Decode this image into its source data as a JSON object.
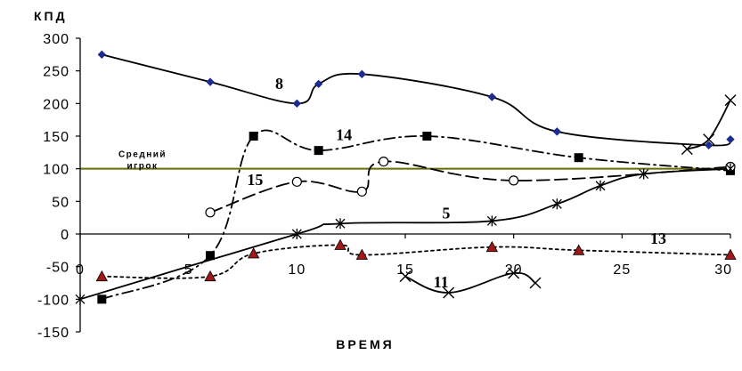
{
  "chart_data": {
    "type": "line",
    "ylabel": "КПД",
    "xlabel": "ВРЕМЯ",
    "xlim": [
      0,
      30
    ],
    "ylim": [
      -150,
      300
    ],
    "xticks": [
      0,
      5,
      10,
      15,
      20,
      25,
      30
    ],
    "yticks": [
      300,
      250,
      200,
      150,
      100,
      50,
      0,
      -50,
      -100,
      -150
    ],
    "xtick_labels": [
      "0",
      "5",
      "10",
      "15",
      "20",
      "25",
      "30"
    ],
    "ytick_labels": [
      "300",
      "250",
      "200",
      "150",
      "100",
      "50",
      "0",
      "-50",
      "-100",
      "-150"
    ],
    "grid": false,
    "legend": "none",
    "reference_line": {
      "y": 100,
      "label_lines": [
        "Средний",
        "игрок"
      ],
      "color": "#6b6b00"
    },
    "series": [
      {
        "name": "8",
        "color": "#000000",
        "dash": "solid",
        "marker": "diamond",
        "marker_color": "#1f2c8f",
        "x": [
          1,
          6,
          10,
          11,
          13,
          19,
          22,
          29,
          30
        ],
        "y": [
          275,
          233,
          200,
          230,
          245,
          210,
          157,
          136,
          145
        ],
        "label_at": [
          9,
          222
        ]
      },
      {
        "name": "14",
        "color": "#000000",
        "dash": "dashdot",
        "marker": "square",
        "marker_color": "#000000",
        "x": [
          1,
          6,
          8,
          11,
          16,
          23,
          30
        ],
        "y": [
          -100,
          -33,
          150,
          128,
          150,
          117,
          97
        ],
        "label_at": [
          11.8,
          144
        ]
      },
      {
        "name": "15",
        "color": "#000000",
        "dash": "longdash",
        "marker": "circle",
        "marker_color": "#ffffff",
        "x": [
          6,
          10,
          13,
          14,
          20,
          30
        ],
        "y": [
          33,
          80,
          65,
          111,
          82,
          103
        ],
        "label_at": [
          7.7,
          75
        ]
      },
      {
        "name": "5",
        "color": "#000000",
        "dash": "solid",
        "marker": "star",
        "marker_color": "#000000",
        "x": [
          0,
          10,
          12,
          19,
          22,
          24,
          26,
          30
        ],
        "y": [
          -100,
          0,
          16,
          20,
          46,
          74,
          92,
          100
        ],
        "label_at": [
          16.7,
          24
        ]
      },
      {
        "name": "13",
        "color": "#000000",
        "dash": "dotted",
        "marker": "triangle",
        "marker_color": "#a01818",
        "x": [
          1,
          6,
          8,
          12,
          13,
          19,
          23,
          30
        ],
        "y": [
          -65,
          -65,
          -30,
          -17,
          -32,
          -20,
          -25,
          -32
        ],
        "label_at": [
          26.3,
          -15
        ]
      },
      {
        "name": "11",
        "color": "#000000",
        "dash": "solid",
        "marker": "x",
        "marker_color": "#000000",
        "x": [
          15,
          17,
          20,
          21
        ],
        "y": [
          -65,
          -90,
          -60,
          -75
        ],
        "label_at": [
          16.3,
          -82
        ]
      },
      {
        "name": "",
        "color": "#000000",
        "dash": "solid",
        "marker": "x",
        "marker_color": "#000000",
        "x": [
          28,
          29,
          30
        ],
        "y": [
          130,
          145,
          205
        ],
        "label_at": null
      }
    ]
  }
}
